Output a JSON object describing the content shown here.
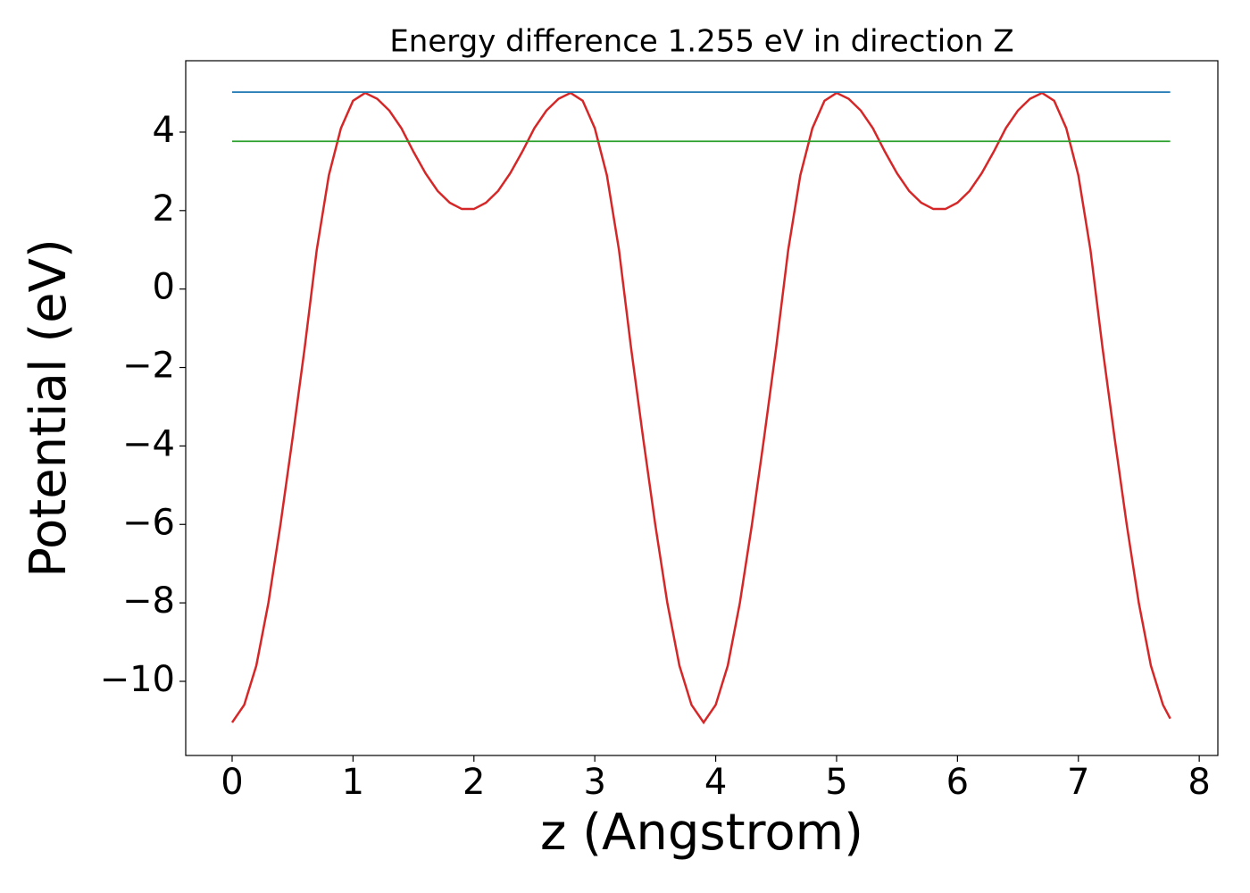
{
  "chart_data": {
    "type": "line",
    "title": "Energy difference 1.255 eV in direction Z",
    "xlabel": "z (Angstrom)",
    "ylabel": "Potential (eV)",
    "xlim": [
      -0.384,
      8.154
    ],
    "ylim": [
      -11.89,
      5.82
    ],
    "xticks": [
      0,
      1,
      2,
      3,
      4,
      5,
      6,
      7,
      8
    ],
    "yticks": [
      {
        "value": -10,
        "label": "−10"
      },
      {
        "value": -8,
        "label": "−8"
      },
      {
        "value": -6,
        "label": "−6"
      },
      {
        "value": -4,
        "label": "−4"
      },
      {
        "value": -2,
        "label": "−2"
      },
      0,
      2,
      4
    ],
    "grid": false,
    "series": [
      {
        "color": "#d62728",
        "x": [
          0,
          0.1,
          0.2,
          0.3,
          0.4,
          0.5,
          0.6,
          0.7,
          0.8,
          0.9,
          1.0,
          1.1,
          1.2,
          1.3,
          1.4,
          1.5,
          1.6,
          1.7,
          1.8,
          1.9,
          2.0,
          2.1,
          2.2,
          2.3,
          2.4,
          2.5,
          2.6,
          2.7,
          2.8,
          2.9,
          3.0,
          3.1,
          3.2,
          3.3,
          3.4,
          3.5,
          3.6,
          3.7,
          3.8,
          3.9,
          4.0,
          4.1,
          4.2,
          4.3,
          4.4,
          4.5,
          4.6,
          4.7,
          4.8,
          4.9,
          5.0,
          5.1,
          5.2,
          5.3,
          5.4,
          5.5,
          5.6,
          5.7,
          5.8,
          5.9,
          6.0,
          6.1,
          6.2,
          6.3,
          6.4,
          6.5,
          6.6,
          6.7,
          6.8,
          6.9,
          7.0,
          7.1,
          7.2,
          7.3,
          7.4,
          7.5,
          7.6,
          7.7,
          7.76
        ],
        "values": [
          -11.05,
          -10.6,
          -9.6,
          -8.0,
          -6.0,
          -3.8,
          -1.5,
          1.0,
          2.9,
          4.1,
          4.8,
          5.0,
          4.85,
          4.55,
          4.1,
          3.5,
          2.95,
          2.5,
          2.2,
          2.04,
          2.04,
          2.2,
          2.5,
          2.95,
          3.5,
          4.1,
          4.55,
          4.85,
          5.0,
          4.8,
          4.1,
          2.9,
          1.0,
          -1.5,
          -3.8,
          -6.0,
          -8.0,
          -9.6,
          -10.6,
          -11.05,
          -10.6,
          -9.6,
          -8.0,
          -6.0,
          -3.8,
          -1.5,
          1.0,
          2.9,
          4.1,
          4.8,
          5.0,
          4.85,
          4.55,
          4.1,
          3.5,
          2.95,
          2.5,
          2.2,
          2.04,
          2.04,
          2.2,
          2.5,
          2.95,
          3.5,
          4.1,
          4.55,
          4.85,
          5.0,
          4.8,
          4.1,
          2.9,
          1.0,
          -1.5,
          -3.8,
          -6.0,
          -8.0,
          -9.6,
          -10.6,
          -10.95
        ]
      },
      {
        "color": "#1f77b4",
        "x": [
          0,
          7.76
        ],
        "values": [
          5.02,
          5.02
        ]
      },
      {
        "color": "#2ca02c",
        "x": [
          0,
          7.76
        ],
        "values": [
          3.765,
          3.765
        ]
      }
    ]
  }
}
